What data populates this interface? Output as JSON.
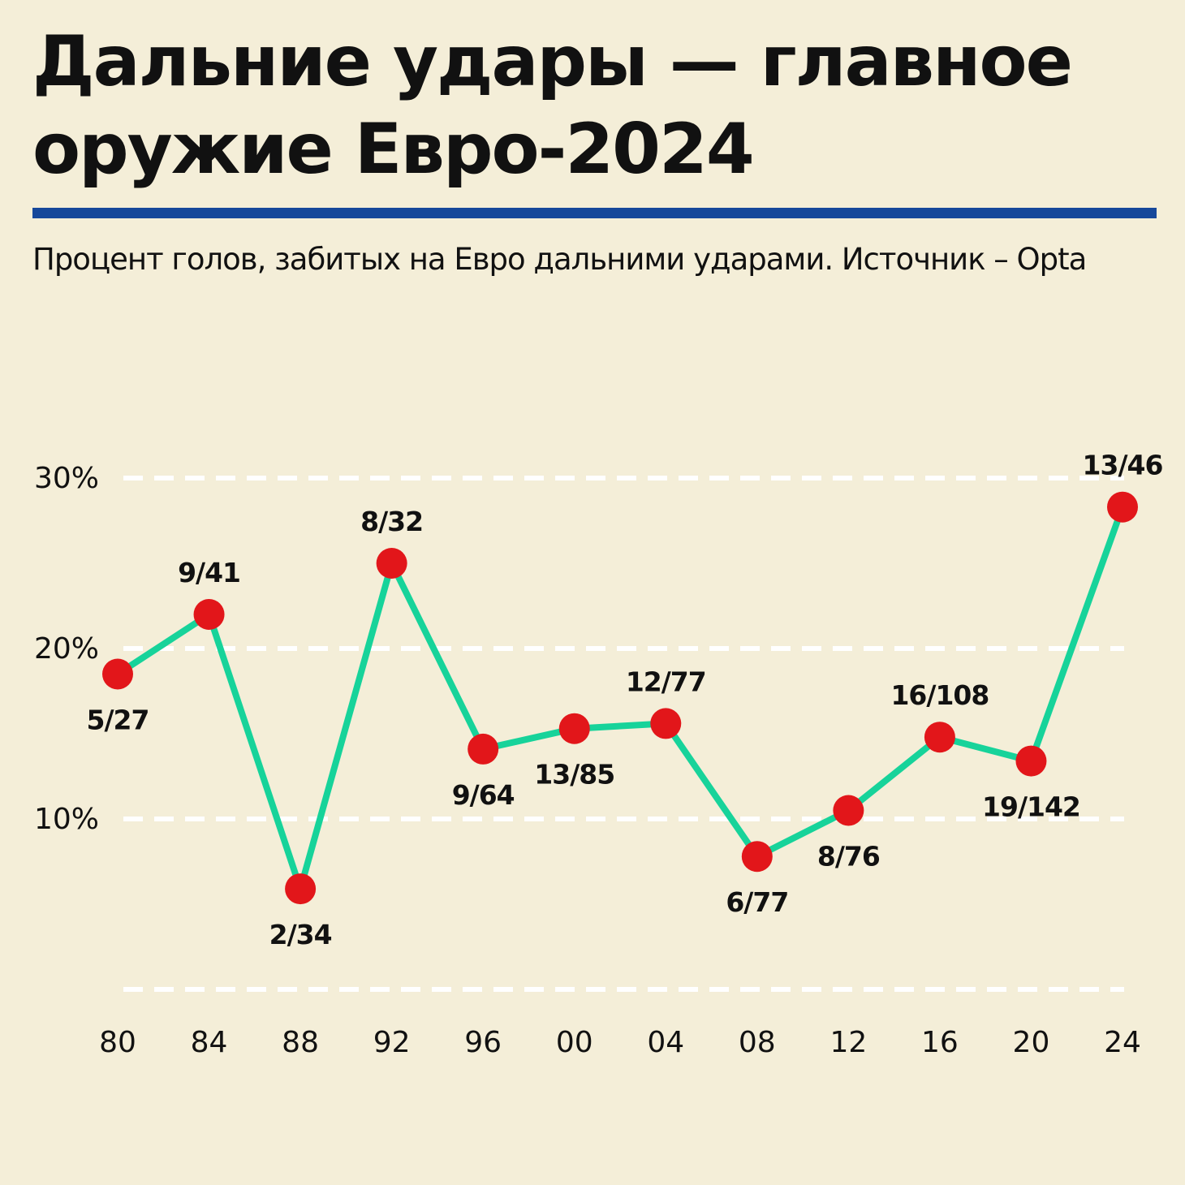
{
  "title": "Дальние удары — главное оружие Евро-2024",
  "subtitle": "Процент голов, забитых на Евро дальними ударами. Источник – Opta",
  "colors": {
    "background": "#f4eed8",
    "rule": "#16489a",
    "line": "#17d39a",
    "marker": "#e2161a",
    "grid": "#ffffff"
  },
  "chart_data": {
    "type": "line",
    "title": "Дальние удары — главное оружие Евро-2024",
    "subtitle": "Процент голов, забитых на Евро дальними ударами. Источник – Opta",
    "xlabel": "",
    "ylabel": "",
    "ylim": [
      0,
      30
    ],
    "grid": true,
    "y_ticks": [
      {
        "value": 10,
        "label": "10%"
      },
      {
        "value": 20,
        "label": "20%"
      },
      {
        "value": 30,
        "label": "30%"
      }
    ],
    "categories": [
      "80",
      "84",
      "88",
      "92",
      "96",
      "00",
      "04",
      "08",
      "12",
      "16",
      "20",
      "24"
    ],
    "values": [
      18.5,
      22.0,
      5.9,
      25.0,
      14.1,
      15.3,
      15.6,
      7.8,
      10.5,
      14.8,
      13.4,
      28.3
    ],
    "data_labels": [
      "5/27",
      "9/41",
      "2/34",
      "8/32",
      "9/64",
      "13/85",
      "12/77",
      "6/77",
      "8/76",
      "16/108",
      "19/142",
      "13/46"
    ],
    "label_positions": [
      "below",
      "above",
      "below",
      "above",
      "below",
      "below",
      "above",
      "below",
      "below",
      "above",
      "below",
      "above"
    ]
  }
}
